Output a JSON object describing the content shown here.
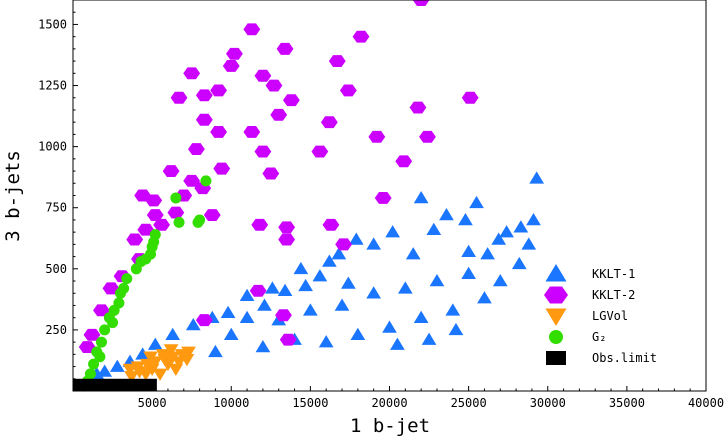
{
  "chart_data": {
    "type": "scatter",
    "xlabel": "1 b-jet",
    "ylabel": "3 b-jets",
    "xlim": [
      0,
      40000
    ],
    "ylim": [
      0,
      1600
    ],
    "x_ticks": [
      5000,
      10000,
      15000,
      20000,
      25000,
      30000,
      35000,
      40000
    ],
    "x_tick_labels": [
      "5000",
      "10000",
      "15000",
      "20000",
      "25000",
      "30000",
      "35000",
      "40000"
    ],
    "y_ticks": [
      250,
      500,
      750,
      1000,
      1250,
      1500
    ],
    "y_tick_labels": [
      "250",
      "500",
      "750",
      "1000",
      "1250",
      "1500"
    ],
    "grid": false,
    "legend_position": "bottom-right",
    "colors": {
      "kklt1": "#1a75ff",
      "kklt2": "#cc00ff",
      "lgvol": "#ff9910",
      "g2": "#33dd00",
      "obs": "#000000"
    },
    "series": [
      {
        "name": "KKLT-1",
        "marker": "triangle-up",
        "points": [
          [
            29300,
            870
          ],
          [
            25500,
            770
          ],
          [
            23600,
            720
          ],
          [
            22000,
            790
          ],
          [
            24800,
            700
          ],
          [
            26200,
            560
          ],
          [
            26900,
            620
          ],
          [
            27400,
            650
          ],
          [
            28300,
            670
          ],
          [
            29100,
            700
          ],
          [
            28800,
            600
          ],
          [
            25000,
            570
          ],
          [
            22800,
            660
          ],
          [
            21500,
            560
          ],
          [
            20200,
            650
          ],
          [
            19000,
            600
          ],
          [
            17900,
            620
          ],
          [
            16800,
            560
          ],
          [
            15600,
            470
          ],
          [
            14700,
            430
          ],
          [
            13400,
            410
          ],
          [
            12100,
            350
          ],
          [
            11000,
            390
          ],
          [
            9800,
            320
          ],
          [
            8800,
            300
          ],
          [
            7600,
            270
          ],
          [
            6300,
            230
          ],
          [
            5200,
            190
          ],
          [
            4400,
            150
          ],
          [
            3600,
            120
          ],
          [
            2800,
            100
          ],
          [
            2000,
            80
          ],
          [
            1500,
            70
          ],
          [
            13000,
            290
          ],
          [
            15000,
            330
          ],
          [
            17000,
            350
          ],
          [
            19000,
            400
          ],
          [
            21000,
            420
          ],
          [
            23000,
            450
          ],
          [
            25000,
            480
          ],
          [
            18000,
            230
          ],
          [
            20000,
            260
          ],
          [
            22000,
            300
          ],
          [
            24000,
            330
          ],
          [
            26000,
            380
          ],
          [
            16000,
            200
          ],
          [
            14000,
            210
          ],
          [
            12000,
            180
          ],
          [
            10000,
            230
          ],
          [
            9000,
            160
          ],
          [
            24200,
            250
          ],
          [
            22500,
            210
          ],
          [
            20500,
            190
          ],
          [
            27000,
            450
          ],
          [
            28200,
            520
          ],
          [
            11000,
            300
          ],
          [
            12600,
            420
          ],
          [
            14400,
            500
          ],
          [
            16200,
            530
          ],
          [
            17400,
            440
          ]
        ]
      },
      {
        "name": "KKLT-2",
        "marker": "hexagon",
        "points": [
          [
            22000,
            1600
          ],
          [
            11300,
            1480
          ],
          [
            10200,
            1380
          ],
          [
            13400,
            1400
          ],
          [
            18200,
            1450
          ],
          [
            16700,
            1350
          ],
          [
            7500,
            1300
          ],
          [
            10000,
            1330
          ],
          [
            12000,
            1290
          ],
          [
            12700,
            1250
          ],
          [
            9200,
            1230
          ],
          [
            17400,
            1230
          ],
          [
            6700,
            1200
          ],
          [
            8300,
            1210
          ],
          [
            13800,
            1190
          ],
          [
            25100,
            1200
          ],
          [
            21800,
            1160
          ],
          [
            13000,
            1130
          ],
          [
            16200,
            1100
          ],
          [
            8300,
            1110
          ],
          [
            9200,
            1060
          ],
          [
            11300,
            1060
          ],
          [
            19200,
            1040
          ],
          [
            22400,
            1040
          ],
          [
            7800,
            990
          ],
          [
            12000,
            980
          ],
          [
            15600,
            980
          ],
          [
            20900,
            940
          ],
          [
            9400,
            910
          ],
          [
            6200,
            900
          ],
          [
            12500,
            890
          ],
          [
            7500,
            860
          ],
          [
            8200,
            830
          ],
          [
            4400,
            800
          ],
          [
            5100,
            780
          ],
          [
            7000,
            800
          ],
          [
            19600,
            790
          ],
          [
            6500,
            730
          ],
          [
            8800,
            720
          ],
          [
            11800,
            680
          ],
          [
            13500,
            670
          ],
          [
            16300,
            680
          ],
          [
            5600,
            680
          ],
          [
            3900,
            620
          ],
          [
            17100,
            600
          ],
          [
            13500,
            620
          ],
          [
            4200,
            540
          ],
          [
            3100,
            470
          ],
          [
            2400,
            420
          ],
          [
            1800,
            330
          ],
          [
            1200,
            230
          ],
          [
            900,
            180
          ],
          [
            11700,
            410
          ],
          [
            13300,
            310
          ],
          [
            8300,
            290
          ],
          [
            13600,
            210
          ],
          [
            5200,
            720
          ],
          [
            4600,
            660
          ]
        ]
      },
      {
        "name": "LGVol",
        "marker": "triangle-down",
        "points": [
          [
            3600,
            90
          ],
          [
            4100,
            100
          ],
          [
            4700,
            110
          ],
          [
            5200,
            120
          ],
          [
            5800,
            130
          ],
          [
            6300,
            140
          ],
          [
            6900,
            150
          ],
          [
            7300,
            160
          ],
          [
            4200,
            80
          ],
          [
            5000,
            90
          ],
          [
            6000,
            110
          ],
          [
            6700,
            120
          ],
          [
            3700,
            60
          ],
          [
            4600,
            70
          ],
          [
            5500,
            70
          ],
          [
            6500,
            90
          ],
          [
            7200,
            130
          ],
          [
            4900,
            140
          ],
          [
            5700,
            150
          ],
          [
            6200,
            170
          ]
        ]
      },
      {
        "name": "G₂",
        "marker": "circle",
        "points": [
          [
            8400,
            860
          ],
          [
            6500,
            790
          ],
          [
            8000,
            700
          ],
          [
            6700,
            690
          ],
          [
            7900,
            690
          ],
          [
            5200,
            640
          ],
          [
            5000,
            590
          ],
          [
            4900,
            560
          ],
          [
            4300,
            530
          ],
          [
            4000,
            500
          ],
          [
            3400,
            460
          ],
          [
            3000,
            400
          ],
          [
            2900,
            360
          ],
          [
            2600,
            330
          ],
          [
            2300,
            300
          ],
          [
            2000,
            250
          ],
          [
            1800,
            200
          ],
          [
            1500,
            160
          ],
          [
            1300,
            110
          ],
          [
            1100,
            70
          ],
          [
            900,
            40
          ],
          [
            700,
            20
          ],
          [
            3200,
            420
          ],
          [
            2500,
            280
          ],
          [
            1700,
            140
          ],
          [
            4600,
            540
          ],
          [
            5100,
            610
          ]
        ]
      },
      {
        "name": "Obs.limit",
        "marker": "box",
        "x": [
          0,
          5300
        ],
        "y": [
          0,
          50
        ]
      }
    ]
  }
}
